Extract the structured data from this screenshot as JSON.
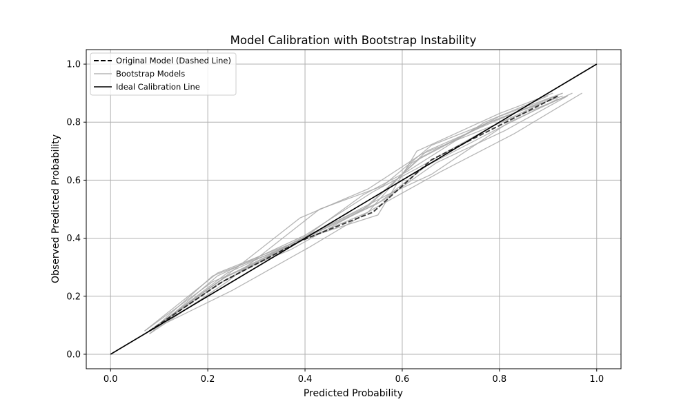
{
  "chart_data": {
    "type": "line",
    "title": "Model Calibration with Bootstrap Instability",
    "xlabel": "Predicted Probability",
    "ylabel": "Observed Predicted Probability",
    "xlim": [
      -0.05,
      1.05
    ],
    "ylim": [
      -0.05,
      1.05
    ],
    "xticks": [
      0.0,
      0.2,
      0.4,
      0.6,
      0.8,
      1.0
    ],
    "yticks": [
      0.0,
      0.2,
      0.4,
      0.6,
      0.8,
      1.0
    ],
    "xtick_labels": [
      "0.0",
      "0.2",
      "0.4",
      "0.6",
      "0.8",
      "1.0"
    ],
    "ytick_labels": [
      "0.0",
      "0.2",
      "0.4",
      "0.6",
      "0.8",
      "1.0"
    ],
    "grid": true,
    "legend_position": "top-left",
    "colors": {
      "original": "#000000",
      "bootstrap": "#a9a9a9",
      "ideal": "#000000",
      "grid": "#b0b0b0"
    },
    "ideal_line": {
      "name": "Ideal Calibration Line",
      "x": [
        0.0,
        1.0
      ],
      "y": [
        0.0,
        1.0
      ]
    },
    "original_model": {
      "name": "Original Model (Dashed Line)",
      "x": [
        0.08,
        0.23,
        0.39,
        0.54,
        0.66,
        0.79,
        0.92
      ],
      "y": [
        0.08,
        0.25,
        0.39,
        0.49,
        0.67,
        0.78,
        0.89
      ]
    },
    "bootstrap_label": "Bootstrap Models",
    "bootstrap_series": [
      {
        "x": [
          0.07,
          0.22,
          0.4,
          0.55,
          0.63,
          0.8,
          0.91
        ],
        "y": [
          0.08,
          0.28,
          0.4,
          0.48,
          0.7,
          0.83,
          0.9
        ]
      },
      {
        "x": [
          0.08,
          0.24,
          0.43,
          0.56,
          0.66,
          0.81,
          0.93
        ],
        "y": [
          0.07,
          0.25,
          0.5,
          0.58,
          0.72,
          0.82,
          0.89
        ]
      },
      {
        "x": [
          0.09,
          0.21,
          0.38,
          0.52,
          0.61,
          0.77,
          0.9
        ],
        "y": [
          0.09,
          0.27,
          0.38,
          0.55,
          0.63,
          0.8,
          0.89
        ]
      },
      {
        "x": [
          0.08,
          0.25,
          0.41,
          0.54,
          0.68,
          0.83,
          0.97
        ],
        "y": [
          0.08,
          0.22,
          0.37,
          0.5,
          0.63,
          0.76,
          0.9
        ]
      },
      {
        "x": [
          0.07,
          0.23,
          0.39,
          0.53,
          0.64,
          0.79,
          0.94
        ],
        "y": [
          0.07,
          0.26,
          0.47,
          0.57,
          0.69,
          0.79,
          0.89
        ]
      },
      {
        "x": [
          0.09,
          0.22,
          0.4,
          0.55,
          0.65,
          0.8,
          0.92
        ],
        "y": [
          0.09,
          0.24,
          0.4,
          0.52,
          0.65,
          0.78,
          0.88
        ]
      },
      {
        "x": [
          0.08,
          0.24,
          0.42,
          0.57,
          0.66,
          0.82,
          0.95
        ],
        "y": [
          0.08,
          0.27,
          0.42,
          0.55,
          0.62,
          0.8,
          0.9
        ]
      },
      {
        "x": [
          0.08,
          0.23,
          0.39,
          0.53,
          0.62,
          0.78,
          0.91
        ],
        "y": [
          0.08,
          0.26,
          0.39,
          0.49,
          0.66,
          0.8,
          0.88
        ]
      },
      {
        "x": [
          0.07,
          0.21,
          0.37,
          0.52,
          0.64,
          0.8,
          0.93
        ],
        "y": [
          0.08,
          0.25,
          0.36,
          0.5,
          0.68,
          0.82,
          0.9
        ]
      },
      {
        "x": [
          0.09,
          0.24,
          0.41,
          0.56,
          0.67,
          0.81,
          0.94
        ],
        "y": [
          0.09,
          0.28,
          0.41,
          0.53,
          0.66,
          0.77,
          0.89
        ]
      },
      {
        "x": [
          0.08,
          0.22,
          0.4,
          0.54,
          0.63,
          0.79,
          0.92
        ],
        "y": [
          0.07,
          0.27,
          0.41,
          0.56,
          0.64,
          0.79,
          0.89
        ]
      },
      {
        "x": [
          0.08,
          0.23,
          0.38,
          0.53,
          0.65,
          0.8,
          0.93
        ],
        "y": [
          0.08,
          0.25,
          0.39,
          0.51,
          0.7,
          0.81,
          0.9
        ]
      }
    ]
  }
}
